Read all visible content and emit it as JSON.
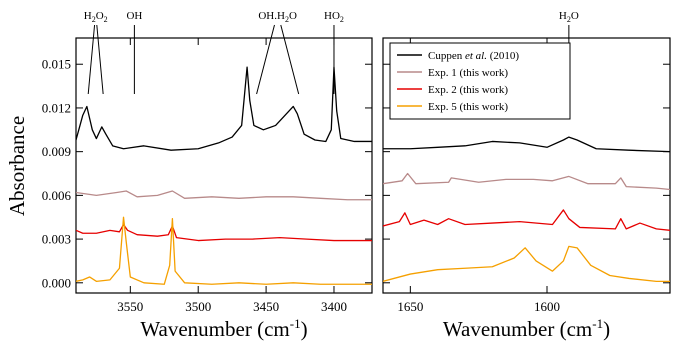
{
  "chart_data": {
    "type": "line",
    "ylabel": "Absorbance",
    "legend": {
      "placement": "top-left of right panel",
      "entries": [
        {
          "series": "cuppen",
          "parts": [
            {
              "t": "Cuppen ",
              "italic": false
            },
            {
              "t": "et al.",
              "italic": true
            },
            {
              "t": " (2010)",
              "italic": false
            }
          ]
        },
        {
          "series": "exp1",
          "parts": [
            {
              "t": "Exp. 1 (this work)",
              "italic": false
            }
          ]
        },
        {
          "series": "exp2",
          "parts": [
            {
              "t": "Exp. 2 (this work)",
              "italic": false
            }
          ]
        },
        {
          "series": "exp5",
          "parts": [
            {
              "t": "Exp. 5 (this work)",
              "italic": false
            }
          ]
        }
      ]
    },
    "series_styles": {
      "cuppen": {
        "color": "#000000"
      },
      "exp1": {
        "color": "#b88a8a"
      },
      "exp2": {
        "color": "#e60000"
      },
      "exp5": {
        "color": "#f5a000"
      }
    },
    "ylim": [
      -0.0007,
      0.0168
    ],
    "y_ticks": [
      "0.000",
      "0.003",
      "0.006",
      "0.009",
      "0.012",
      "0.015"
    ],
    "y_tick_values": [
      0.0,
      0.003,
      0.006,
      0.009,
      0.012,
      0.015
    ],
    "panels": [
      {
        "id": "left",
        "xlabel": "Wavenumber (cm-1)",
        "x_reversed": true,
        "xlim": [
          3590,
          3372
        ],
        "x_ticks": [
          "3550",
          "3500",
          "3450",
          "3400"
        ],
        "x_tick_values": [
          3550,
          3500,
          3450,
          3400
        ],
        "grid": false,
        "annotations": [
          {
            "label": [
              "H",
              "2",
              "O",
              "2"
            ],
            "lines": [
              {
                "x": 3581
              },
              {
                "x": 3570
              }
            ]
          },
          {
            "label": [
              "OH"
            ],
            "lines": [
              {
                "x": 3547
              }
            ]
          },
          {
            "label": [
              "OH.H",
              "2",
              "O"
            ],
            "lines": [
              {
                "x": 3457
              },
              {
                "x": 3426
              }
            ]
          },
          {
            "label": [
              "HO",
              "2"
            ],
            "lines": [
              {
                "x": 3400
              }
            ]
          }
        ],
        "series": [
          {
            "name": "cuppen",
            "values": [
              [
                3590,
                0.0098
              ],
              [
                3585,
                0.0115
              ],
              [
                3582,
                0.0121
              ],
              [
                3578,
                0.0105
              ],
              [
                3575,
                0.0099
              ],
              [
                3571,
                0.0107
              ],
              [
                3568,
                0.0102
              ],
              [
                3563,
                0.0094
              ],
              [
                3555,
                0.0092
              ],
              [
                3540,
                0.0094
              ],
              [
                3520,
                0.0091
              ],
              [
                3500,
                0.0092
              ],
              [
                3485,
                0.0096
              ],
              [
                3475,
                0.01
              ],
              [
                3468,
                0.0108
              ],
              [
                3466,
                0.0128
              ],
              [
                3464,
                0.0148
              ],
              [
                3462,
                0.0125
              ],
              [
                3459,
                0.0108
              ],
              [
                3452,
                0.0105
              ],
              [
                3443,
                0.0108
              ],
              [
                3437,
                0.0114
              ],
              [
                3430,
                0.0121
              ],
              [
                3427,
                0.0116
              ],
              [
                3422,
                0.0102
              ],
              [
                3414,
                0.0098
              ],
              [
                3406,
                0.0097
              ],
              [
                3402,
                0.0105
              ],
              [
                3400,
                0.0148
              ],
              [
                3398,
                0.0118
              ],
              [
                3395,
                0.0099
              ],
              [
                3385,
                0.0097
              ],
              [
                3372,
                0.0097
              ]
            ]
          },
          {
            "name": "exp1",
            "values": [
              [
                3590,
                0.0062
              ],
              [
                3575,
                0.006
              ],
              [
                3560,
                0.0062
              ],
              [
                3553,
                0.0063
              ],
              [
                3545,
                0.0059
              ],
              [
                3530,
                0.006
              ],
              [
                3519,
                0.0063
              ],
              [
                3510,
                0.0058
              ],
              [
                3490,
                0.0059
              ],
              [
                3470,
                0.0058
              ],
              [
                3450,
                0.0059
              ],
              [
                3430,
                0.0059
              ],
              [
                3410,
                0.0058
              ],
              [
                3390,
                0.0057
              ],
              [
                3372,
                0.0057
              ]
            ]
          },
          {
            "name": "exp2",
            "values": [
              [
                3590,
                0.0036
              ],
              [
                3585,
                0.0034
              ],
              [
                3575,
                0.0034
              ],
              [
                3565,
                0.0036
              ],
              [
                3558,
                0.0035
              ],
              [
                3555,
                0.004
              ],
              [
                3552,
                0.0036
              ],
              [
                3545,
                0.0033
              ],
              [
                3530,
                0.0032
              ],
              [
                3522,
                0.0033
              ],
              [
                3519,
                0.0039
              ],
              [
                3516,
                0.0031
              ],
              [
                3500,
                0.0029
              ],
              [
                3480,
                0.003
              ],
              [
                3460,
                0.003
              ],
              [
                3440,
                0.0031
              ],
              [
                3420,
                0.003
              ],
              [
                3400,
                0.0029
              ],
              [
                3380,
                0.0029
              ],
              [
                3372,
                0.0029
              ]
            ]
          },
          {
            "name": "exp5",
            "values": [
              [
                3590,
                0.0001
              ],
              [
                3585,
                0.0002
              ],
              [
                3580,
                0.0004
              ],
              [
                3575,
                0.0001
              ],
              [
                3565,
                0.0002
              ],
              [
                3558,
                0.001
              ],
              [
                3555,
                0.0045
              ],
              [
                3553,
                0.0028
              ],
              [
                3550,
                0.0004
              ],
              [
                3540,
                0.0
              ],
              [
                3525,
                -0.0001
              ],
              [
                3521,
                0.0012
              ],
              [
                3519,
                0.0044
              ],
              [
                3517,
                0.0008
              ],
              [
                3510,
                0.0
              ],
              [
                3490,
                -0.0001
              ],
              [
                3470,
                0.0
              ],
              [
                3450,
                -0.0001
              ],
              [
                3430,
                0.0
              ],
              [
                3410,
                -0.0001
              ],
              [
                3390,
                -0.0001
              ],
              [
                3372,
                -0.0001
              ]
            ]
          }
        ]
      },
      {
        "id": "right",
        "xlabel": "Wavenumber (cm-1)",
        "x_reversed": true,
        "xlim": [
          1660,
          1555
        ],
        "x_ticks": [
          "1650",
          "1600"
        ],
        "x_tick_values": [
          1650,
          1600
        ],
        "grid": false,
        "annotations": [
          {
            "label": [
              "H",
              "2",
              "O"
            ],
            "lines": [
              {
                "x": 1592
              }
            ]
          }
        ],
        "series": [
          {
            "name": "cuppen",
            "values": [
              [
                1660,
                0.0092
              ],
              [
                1650,
                0.0092
              ],
              [
                1640,
                0.0093
              ],
              [
                1630,
                0.0094
              ],
              [
                1620,
                0.0097
              ],
              [
                1610,
                0.0096
              ],
              [
                1600,
                0.0093
              ],
              [
                1594,
                0.0098
              ],
              [
                1592,
                0.01
              ],
              [
                1589,
                0.0098
              ],
              [
                1582,
                0.0092
              ],
              [
                1570,
                0.0091
              ],
              [
                1555,
                0.009
              ]
            ]
          },
          {
            "name": "exp1",
            "values": [
              [
                1660,
                0.0068
              ],
              [
                1653,
                0.007
              ],
              [
                1651,
                0.0075
              ],
              [
                1648,
                0.0068
              ],
              [
                1636,
                0.0069
              ],
              [
                1635,
                0.0072
              ],
              [
                1625,
                0.0069
              ],
              [
                1615,
                0.0071
              ],
              [
                1605,
                0.0071
              ],
              [
                1598,
                0.007
              ],
              [
                1592,
                0.0073
              ],
              [
                1585,
                0.0068
              ],
              [
                1575,
                0.0068
              ],
              [
                1573,
                0.0072
              ],
              [
                1571,
                0.0066
              ],
              [
                1560,
                0.0065
              ],
              [
                1555,
                0.0064
              ]
            ]
          },
          {
            "name": "exp2",
            "values": [
              [
                1660,
                0.0039
              ],
              [
                1654,
                0.0042
              ],
              [
                1652,
                0.0048
              ],
              [
                1650,
                0.004
              ],
              [
                1645,
                0.0043
              ],
              [
                1640,
                0.004
              ],
              [
                1636,
                0.0044
              ],
              [
                1630,
                0.004
              ],
              [
                1620,
                0.0041
              ],
              [
                1610,
                0.0042
              ],
              [
                1598,
                0.004
              ],
              [
                1594,
                0.005
              ],
              [
                1592,
                0.0044
              ],
              [
                1588,
                0.0038
              ],
              [
                1575,
                0.0037
              ],
              [
                1573,
                0.0044
              ],
              [
                1571,
                0.0037
              ],
              [
                1566,
                0.0041
              ],
              [
                1560,
                0.0037
              ],
              [
                1555,
                0.0036
              ]
            ]
          },
          {
            "name": "exp5",
            "values": [
              [
                1660,
                0.0001
              ],
              [
                1650,
                0.0006
              ],
              [
                1640,
                0.0009
              ],
              [
                1630,
                0.001
              ],
              [
                1620,
                0.0011
              ],
              [
                1612,
                0.0017
              ],
              [
                1608,
                0.0024
              ],
              [
                1604,
                0.0015
              ],
              [
                1598,
                0.0008
              ],
              [
                1594,
                0.0015
              ],
              [
                1592,
                0.0025
              ],
              [
                1589,
                0.0024
              ],
              [
                1584,
                0.0012
              ],
              [
                1577,
                0.0005
              ],
              [
                1570,
                0.0003
              ],
              [
                1560,
                0.0001
              ],
              [
                1555,
                0.0001
              ]
            ]
          }
        ]
      }
    ]
  }
}
